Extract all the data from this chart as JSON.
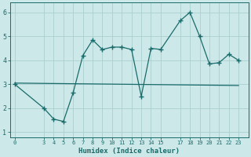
{
  "title": "",
  "xlabel": "Humidex (Indice chaleur)",
  "ylabel": "",
  "bg_color": "#cce8e8",
  "line_color": "#1a6b6b",
  "grid_color": "#aacece",
  "x_ticks": [
    0,
    3,
    4,
    5,
    6,
    7,
    8,
    9,
    10,
    11,
    12,
    13,
    14,
    15,
    17,
    18,
    19,
    20,
    21,
    22,
    23
  ],
  "data_x": [
    0,
    3,
    4,
    5,
    6,
    7,
    8,
    9,
    10,
    11,
    12,
    13,
    14,
    15,
    17,
    18,
    19,
    20,
    21,
    22,
    23
  ],
  "data_y": [
    3.0,
    2.0,
    1.55,
    1.45,
    2.65,
    4.2,
    4.85,
    4.45,
    4.55,
    4.55,
    4.45,
    2.5,
    4.5,
    4.45,
    5.65,
    6.0,
    5.0,
    3.85,
    3.9,
    4.25,
    4.0
  ],
  "trend_x": [
    0,
    23
  ],
  "trend_y": [
    3.05,
    2.95
  ],
  "ylim": [
    0.8,
    6.4
  ],
  "xlim": [
    -0.5,
    24.0
  ],
  "yticks": [
    1,
    2,
    3,
    4,
    5,
    6
  ],
  "ytick_labels": [
    "1",
    "2",
    "3",
    "4",
    "5",
    "6"
  ]
}
